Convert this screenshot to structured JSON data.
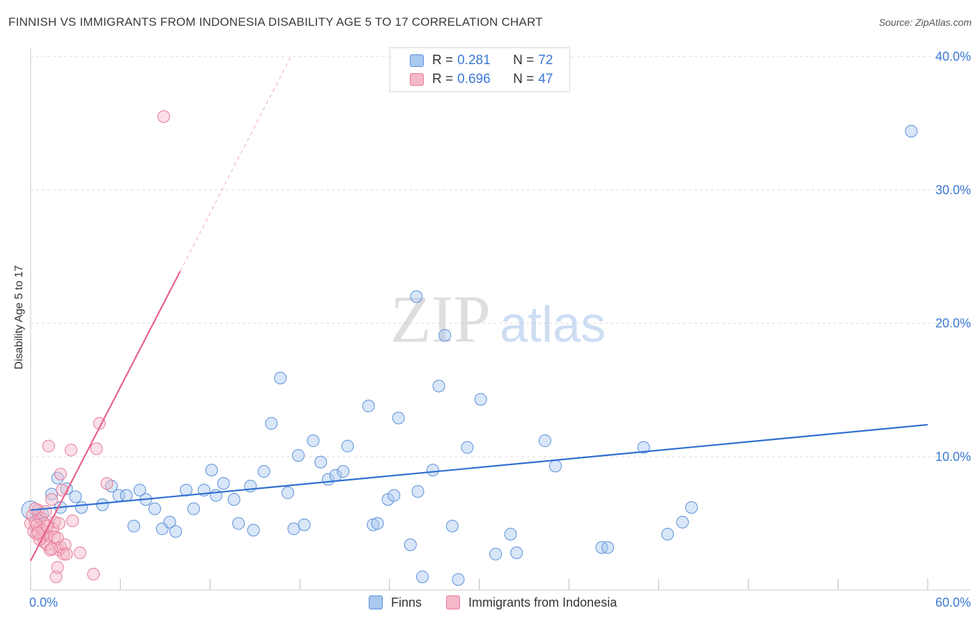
{
  "title": "FINNISH VS IMMIGRANTS FROM INDONESIA DISABILITY AGE 5 TO 17 CORRELATION CHART",
  "source": "Source: ZipAtlas.com",
  "watermark": {
    "zip": "ZIP",
    "atlas": "atlas"
  },
  "colors": {
    "blue_fill": "#a9c8f0",
    "blue_stroke": "#5b8fd9",
    "blue_line": "#2f6fd1",
    "pink_fill": "#f5b8c8",
    "pink_stroke": "#e7799a",
    "pink_line": "#e8608a",
    "axis_text": "#3a78d4",
    "grid": "#dcdcdc"
  },
  "legend": {
    "rows": [
      {
        "r_label": "R =",
        "r_value": "0.281",
        "n_label": "N =",
        "n_value": "72"
      },
      {
        "r_label": "R =",
        "r_value": "0.696",
        "n_label": "N =",
        "n_value": "47"
      }
    ]
  },
  "bottom_legend": {
    "series1": "Finns",
    "series2": "Immigrants from Indonesia"
  },
  "chart_data": {
    "type": "scatter",
    "title": "FINNISH VS IMMIGRANTS FROM INDONESIA DISABILITY AGE 5 TO 17 CORRELATION CHART",
    "xlabel": "",
    "ylabel": "Disability Age 5 to 17",
    "xlim": [
      0,
      60
    ],
    "ylim": [
      0,
      42
    ],
    "x_tick_labels": [
      "0.0%",
      "60.0%"
    ],
    "y_ticks": [
      10,
      20,
      30,
      40
    ],
    "y_tick_labels": [
      "10.0%",
      "20.0%",
      "30.0%",
      "40.0%"
    ],
    "grid": true,
    "legend_position": "top-center",
    "series": [
      {
        "name": "Finns",
        "R": 0.281,
        "N": 72,
        "trend": {
          "x": [
            0,
            60
          ],
          "y": [
            6.0,
            12.4
          ]
        },
        "points": [
          [
            0.0,
            6.0
          ],
          [
            0.5,
            5.5
          ],
          [
            0.8,
            5.7
          ],
          [
            1.4,
            7.2
          ],
          [
            1.8,
            8.4
          ],
          [
            2.0,
            6.2
          ],
          [
            2.4,
            7.6
          ],
          [
            3.0,
            7.0
          ],
          [
            3.4,
            6.2
          ],
          [
            4.8,
            6.4
          ],
          [
            5.4,
            7.8
          ],
          [
            5.9,
            7.1
          ],
          [
            6.4,
            7.1
          ],
          [
            6.9,
            4.8
          ],
          [
            7.3,
            7.5
          ],
          [
            7.7,
            6.8
          ],
          [
            8.3,
            6.1
          ],
          [
            8.8,
            4.6
          ],
          [
            9.3,
            5.1
          ],
          [
            9.7,
            4.4
          ],
          [
            10.4,
            7.5
          ],
          [
            10.9,
            6.1
          ],
          [
            11.6,
            7.5
          ],
          [
            12.1,
            9.0
          ],
          [
            12.4,
            7.1
          ],
          [
            12.9,
            8.0
          ],
          [
            13.6,
            6.8
          ],
          [
            13.9,
            5.0
          ],
          [
            14.7,
            7.8
          ],
          [
            14.9,
            4.5
          ],
          [
            15.6,
            8.9
          ],
          [
            16.1,
            12.5
          ],
          [
            16.7,
            15.9
          ],
          [
            17.2,
            7.3
          ],
          [
            17.6,
            4.6
          ],
          [
            17.9,
            10.1
          ],
          [
            18.3,
            4.9
          ],
          [
            18.9,
            11.2
          ],
          [
            19.4,
            9.6
          ],
          [
            19.9,
            8.3
          ],
          [
            20.4,
            8.6
          ],
          [
            20.9,
            8.9
          ],
          [
            21.2,
            10.8
          ],
          [
            22.6,
            13.8
          ],
          [
            22.9,
            4.9
          ],
          [
            23.2,
            5.0
          ],
          [
            23.9,
            6.8
          ],
          [
            24.3,
            7.1
          ],
          [
            24.6,
            12.9
          ],
          [
            25.8,
            22.0
          ],
          [
            25.4,
            3.4
          ],
          [
            25.9,
            7.4
          ],
          [
            26.2,
            1.0
          ],
          [
            26.9,
            9.0
          ],
          [
            27.3,
            15.3
          ],
          [
            27.7,
            19.1
          ],
          [
            28.2,
            4.8
          ],
          [
            28.6,
            0.8
          ],
          [
            29.2,
            10.7
          ],
          [
            30.1,
            14.3
          ],
          [
            31.1,
            2.7
          ],
          [
            32.1,
            4.2
          ],
          [
            32.5,
            2.8
          ],
          [
            34.4,
            11.2
          ],
          [
            35.1,
            9.3
          ],
          [
            38.2,
            3.2
          ],
          [
            38.6,
            3.2
          ],
          [
            41.0,
            10.7
          ],
          [
            42.6,
            4.2
          ],
          [
            43.6,
            5.1
          ],
          [
            44.2,
            6.2
          ],
          [
            58.9,
            34.4
          ]
        ]
      },
      {
        "name": "Immigrants from Indonesia",
        "R": 0.696,
        "N": 47,
        "trend_solid": {
          "x": [
            0,
            10.0
          ],
          "y": [
            2.2,
            23.9
          ]
        },
        "trend_dashed": {
          "x": [
            10.0,
            17.4
          ],
          "y": [
            23.9,
            40.0
          ]
        },
        "points": [
          [
            0.0,
            5.0
          ],
          [
            0.1,
            5.6
          ],
          [
            0.2,
            4.4
          ],
          [
            0.3,
            5.1
          ],
          [
            0.4,
            4.2
          ],
          [
            0.5,
            6.0
          ],
          [
            0.6,
            4.7
          ],
          [
            0.7,
            5.4
          ],
          [
            0.8,
            4.0
          ],
          [
            0.9,
            3.6
          ],
          [
            0.9,
            5.0
          ],
          [
            1.0,
            4.3
          ],
          [
            1.1,
            3.4
          ],
          [
            1.2,
            10.8
          ],
          [
            1.2,
            4.1
          ],
          [
            1.3,
            3.0
          ],
          [
            1.4,
            6.8
          ],
          [
            1.5,
            4.6
          ],
          [
            1.6,
            5.1
          ],
          [
            1.6,
            4.0
          ],
          [
            1.7,
            1.0
          ],
          [
            1.8,
            3.9
          ],
          [
            1.8,
            1.7
          ],
          [
            1.9,
            3.0
          ],
          [
            1.9,
            5.0
          ],
          [
            2.0,
            3.2
          ],
          [
            2.0,
            8.7
          ],
          [
            2.1,
            7.5
          ],
          [
            2.2,
            2.7
          ],
          [
            2.3,
            3.4
          ],
          [
            2.4,
            2.7
          ],
          [
            2.7,
            10.5
          ],
          [
            2.8,
            5.2
          ],
          [
            3.3,
            2.8
          ],
          [
            4.2,
            1.2
          ],
          [
            4.4,
            10.6
          ],
          [
            4.6,
            12.5
          ],
          [
            5.1,
            8.0
          ],
          [
            8.9,
            35.5
          ],
          [
            0.4,
            4.9
          ],
          [
            0.6,
            3.8
          ],
          [
            0.8,
            4.5
          ],
          [
            1.0,
            5.9
          ],
          [
            0.3,
            6.1
          ],
          [
            1.4,
            3.1
          ],
          [
            0.5,
            4.3
          ],
          [
            1.1,
            4.8
          ]
        ]
      }
    ]
  }
}
